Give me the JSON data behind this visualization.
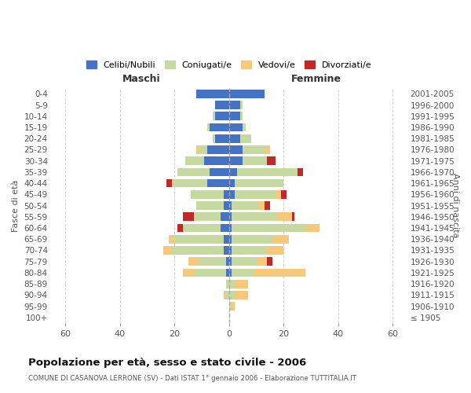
{
  "age_groups": [
    "0-4",
    "5-9",
    "10-14",
    "15-19",
    "20-24",
    "25-29",
    "30-34",
    "35-39",
    "40-44",
    "45-49",
    "50-54",
    "55-59",
    "60-64",
    "65-69",
    "70-74",
    "75-79",
    "80-84",
    "85-89",
    "90-94",
    "95-99",
    "100+"
  ],
  "birth_years": [
    "2001-2005",
    "1996-2000",
    "1991-1995",
    "1986-1990",
    "1981-1985",
    "1976-1980",
    "1971-1975",
    "1966-1970",
    "1961-1965",
    "1956-1960",
    "1951-1955",
    "1946-1950",
    "1941-1945",
    "1936-1940",
    "1931-1935",
    "1926-1930",
    "1921-1925",
    "1916-1920",
    "1911-1915",
    "1906-1910",
    "≤ 1905"
  ],
  "male": {
    "celibi": [
      12,
      5,
      5,
      7,
      5,
      8,
      9,
      7,
      8,
      2,
      2,
      3,
      3,
      2,
      2,
      1,
      1,
      0,
      0,
      0,
      0
    ],
    "coniugati": [
      0,
      0,
      1,
      1,
      1,
      3,
      7,
      12,
      13,
      12,
      10,
      10,
      14,
      18,
      19,
      10,
      12,
      1,
      1,
      0,
      0
    ],
    "vedovi": [
      0,
      0,
      0,
      0,
      0,
      1,
      0,
      0,
      0,
      0,
      0,
      0,
      0,
      2,
      3,
      4,
      4,
      0,
      1,
      0,
      0
    ],
    "divorziati": [
      0,
      0,
      0,
      0,
      0,
      0,
      0,
      0,
      2,
      0,
      0,
      4,
      2,
      0,
      0,
      0,
      0,
      0,
      0,
      0,
      0
    ]
  },
  "female": {
    "nubili": [
      13,
      4,
      4,
      5,
      4,
      5,
      5,
      3,
      2,
      2,
      1,
      1,
      1,
      1,
      1,
      1,
      1,
      0,
      0,
      0,
      0
    ],
    "coniugate": [
      0,
      1,
      1,
      1,
      4,
      8,
      9,
      22,
      18,
      15,
      10,
      17,
      27,
      15,
      13,
      9,
      8,
      2,
      2,
      1,
      0
    ],
    "vedove": [
      0,
      0,
      0,
      0,
      0,
      2,
      0,
      0,
      0,
      2,
      2,
      5,
      5,
      6,
      6,
      4,
      19,
      5,
      5,
      1,
      0
    ],
    "divorziate": [
      0,
      0,
      0,
      0,
      0,
      0,
      3,
      2,
      0,
      2,
      2,
      1,
      0,
      0,
      0,
      2,
      0,
      0,
      0,
      0,
      0
    ]
  },
  "colors": {
    "celibi_nubili": "#4472C4",
    "coniugati_e": "#C5D9A0",
    "vedovi_e": "#F5C87A",
    "divorziati_e": "#C0292A"
  },
  "title": "Popolazione per età, sesso e stato civile - 2006",
  "subtitle": "COMUNE DI CASANOVA LERRONE (SV) - Dati ISTAT 1° gennaio 2006 - Elaborazione TUTTITALIA.IT",
  "xlabel_left": "Maschi",
  "xlabel_right": "Femmine",
  "ylabel_left": "Fasce di età",
  "ylabel_right": "Anni di nascita",
  "xlim": 65,
  "bg_color": "#FFFFFF",
  "grid_color": "#CCCCCC",
  "legend_labels": [
    "Celibi/Nubili",
    "Coniugati/e",
    "Vedovi/e",
    "Divorziati/e"
  ]
}
